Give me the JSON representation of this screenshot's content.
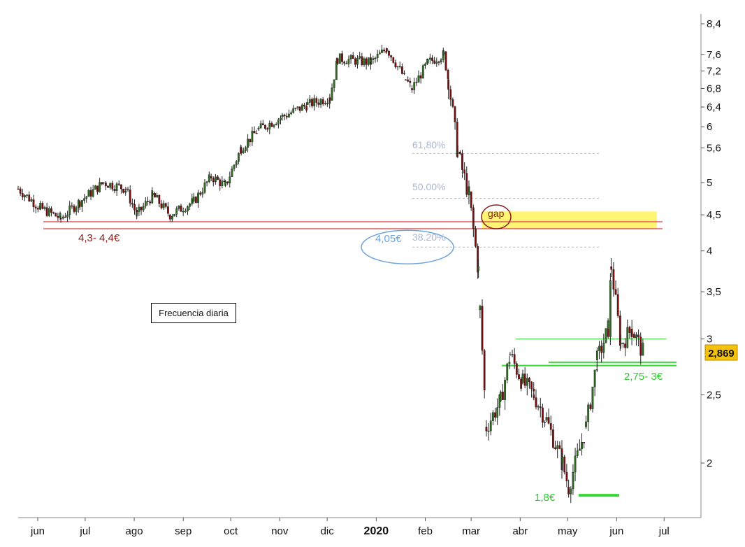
{
  "chart_data": {
    "type": "candlestick",
    "frequency_label": "Frecuencia diaria",
    "y_scale": "log",
    "ylim": [
      1.7,
      8.5
    ],
    "y_ticks": [
      "8,4",
      "7,6",
      "7,2",
      "6,8",
      "6,4",
      "6",
      "5,6",
      "5",
      "4,5",
      "4",
      "3,5",
      "3",
      "2,5",
      "2"
    ],
    "x_ticks": [
      "jun",
      "jul",
      "ago",
      "sep",
      "oct",
      "nov",
      "dic",
      "2020",
      "feb",
      "mar",
      "abr",
      "may",
      "jun",
      "jul"
    ],
    "last_price": "2,869",
    "series_path": [
      [
        "2019-06-01",
        4.9
      ],
      [
        "2019-06-15",
        4.6
      ],
      [
        "2019-06-28",
        4.45
      ],
      [
        "2019-07-10",
        4.7
      ],
      [
        "2019-07-25",
        5.0
      ],
      [
        "2019-08-08",
        4.9
      ],
      [
        "2019-08-15",
        4.5
      ],
      [
        "2019-08-25",
        4.8
      ],
      [
        "2019-09-05",
        4.5
      ],
      [
        "2019-09-20",
        4.7
      ],
      [
        "2019-10-01",
        5.1
      ],
      [
        "2019-10-10",
        4.95
      ],
      [
        "2019-10-20",
        5.6
      ],
      [
        "2019-10-31",
        5.95
      ],
      [
        "2019-11-15",
        6.2
      ],
      [
        "2019-12-01",
        6.45
      ],
      [
        "2019-12-15",
        6.6
      ],
      [
        "2019-12-20",
        7.5
      ],
      [
        "2020-01-10",
        7.4
      ],
      [
        "2020-01-20",
        7.75
      ],
      [
        "2020-02-01",
        7.0
      ],
      [
        "2020-02-05",
        6.8
      ],
      [
        "2020-02-15",
        7.4
      ],
      [
        "2020-02-25",
        7.6
      ],
      [
        "2020-02-28",
        7.0
      ],
      [
        "2020-03-05",
        5.5
      ],
      [
        "2020-03-12",
        4.8
      ],
      [
        "2020-03-18",
        3.75
      ],
      [
        "2020-03-19",
        3.3
      ],
      [
        "2020-03-23",
        2.25
      ],
      [
        "2020-04-01",
        2.45
      ],
      [
        "2020-04-07",
        2.85
      ],
      [
        "2020-04-15",
        2.6
      ],
      [
        "2020-04-22",
        2.5
      ],
      [
        "2020-04-30",
        2.3
      ],
      [
        "2020-05-10",
        2.0
      ],
      [
        "2020-05-14",
        1.85
      ],
      [
        "2020-05-25",
        2.25
      ],
      [
        "2020-06-01",
        2.8
      ],
      [
        "2020-06-08",
        3.1
      ],
      [
        "2020-06-10",
        3.8
      ],
      [
        "2020-06-16",
        2.95
      ],
      [
        "2020-06-23",
        3.1
      ],
      [
        "2020-06-30",
        2.87
      ]
    ],
    "annotations": {
      "support_left": {
        "label": "4,3- 4,4€",
        "levels": [
          4.3,
          4.4
        ],
        "color": "#e05a5a",
        "label_color": "#8b1a1a"
      },
      "gap": {
        "label": "gap",
        "range": [
          4.3,
          4.55
        ],
        "fill": "#fff35a",
        "label_color": "#8b1a1a"
      },
      "fibonacci": [
        {
          "label": "61,80%",
          "level": 5.5
        },
        {
          "label": "50.00%",
          "level": 4.75
        },
        {
          "label": "38.20%",
          "level": 4.05
        }
      ],
      "fib_label_color": "#a9b7d6",
      "target_ellipse": {
        "label": "4,05€",
        "color": "#6fa3d8"
      },
      "resistance_zone": {
        "label": "2,75- 3€",
        "levels": [
          3.0,
          2.78,
          2.75
        ],
        "color": "#36d836"
      },
      "low": {
        "label": "1,8€",
        "level": 1.8,
        "color": "#36d836"
      }
    }
  }
}
